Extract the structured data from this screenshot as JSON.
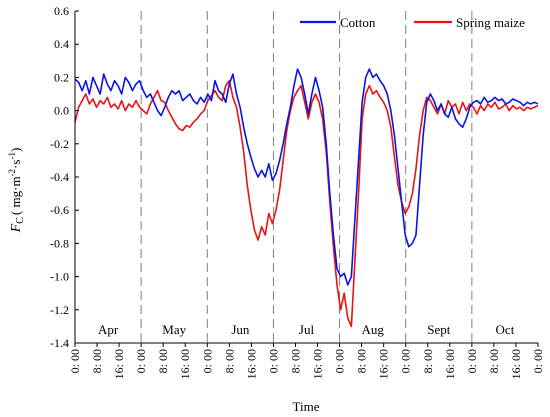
{
  "chart_data": {
    "type": "line",
    "xlabel": "Time",
    "ylabel": {
      "main": "F",
      "sub": "C",
      "unit": "( mg·m",
      "exp1": "-2",
      "mid": "·s",
      "exp2": "-1",
      "close": ")"
    },
    "ylim": [
      -1.4,
      0.6
    ],
    "yticks": [
      "0.6",
      "0.4",
      "0.2",
      "0.0",
      "-0.2",
      "-0.4",
      "-0.6",
      "-0.8",
      "-1.0",
      "-1.2",
      "-1.4"
    ],
    "x_tick_labels": [
      "0: 00",
      "8: 00",
      "16: 00",
      "0: 00",
      "8: 00",
      "16: 00",
      "0: 00",
      "8: 00",
      "16: 00",
      "0: 00",
      "8: 00",
      "16: 00",
      "0: 00",
      "8: 00",
      "16: 00",
      "0: 00",
      "8: 00",
      "16: 00",
      "0: 00",
      "8: 00",
      "16: 00",
      "0: 00"
    ],
    "months": [
      "Apr",
      "May",
      "Jun",
      "Jul",
      "Aug",
      "Sept",
      "Oct"
    ],
    "legend": {
      "placement": "top-right"
    },
    "series": [
      {
        "name": "Cotton",
        "color": "#0a14e6",
        "values": [
          0.19,
          0.17,
          0.12,
          0.18,
          0.1,
          0.2,
          0.15,
          0.1,
          0.22,
          0.16,
          0.12,
          0.18,
          0.15,
          0.1,
          0.2,
          0.17,
          0.12,
          0.16,
          0.18,
          0.12,
          0.08,
          0.1,
          0.05,
          0.0,
          -0.03,
          0.02,
          0.08,
          0.12,
          0.1,
          0.12,
          0.06,
          0.08,
          0.1,
          0.06,
          0.04,
          0.08,
          0.05,
          0.1,
          0.06,
          0.18,
          0.12,
          0.1,
          0.05,
          0.16,
          0.22,
          0.1,
          0.02,
          -0.1,
          -0.2,
          -0.28,
          -0.35,
          -0.4,
          -0.36,
          -0.4,
          -0.32,
          -0.42,
          -0.38,
          -0.3,
          -0.2,
          -0.08,
          0.02,
          0.15,
          0.25,
          0.2,
          0.1,
          -0.02,
          0.1,
          0.2,
          0.12,
          0.02,
          -0.2,
          -0.5,
          -0.75,
          -0.95,
          -1.0,
          -0.98,
          -1.05,
          -1.0,
          -0.65,
          -0.3,
          0.05,
          0.2,
          0.25,
          0.2,
          0.22,
          0.18,
          0.15,
          0.1,
          0.0,
          -0.15,
          -0.35,
          -0.55,
          -0.75,
          -0.82,
          -0.8,
          -0.75,
          -0.45,
          -0.15,
          0.05,
          0.1,
          0.06,
          0.0,
          0.04,
          -0.02,
          -0.04,
          0.02,
          -0.05,
          -0.08,
          -0.1,
          -0.05,
          0.02,
          0.05,
          0.06,
          0.04,
          0.08,
          0.05,
          0.06,
          0.08,
          0.06,
          0.07,
          0.04,
          0.05,
          0.07,
          0.06,
          0.05,
          0.03,
          0.05,
          0.04,
          0.05,
          0.04
        ]
      },
      {
        "name": "Spring maize",
        "color": "#e61414",
        "values": [
          -0.07,
          0.02,
          0.06,
          0.1,
          0.04,
          0.07,
          0.02,
          0.06,
          0.04,
          0.08,
          0.02,
          0.04,
          0.01,
          0.06,
          0.0,
          0.04,
          0.02,
          0.06,
          0.02,
          0.0,
          -0.02,
          0.04,
          0.08,
          0.12,
          0.06,
          0.05,
          0.0,
          -0.04,
          -0.08,
          -0.11,
          -0.12,
          -0.09,
          -0.1,
          -0.07,
          -0.05,
          -0.02,
          0.0,
          0.06,
          0.09,
          0.12,
          0.08,
          0.06,
          0.15,
          0.18,
          0.08,
          0.02,
          -0.1,
          -0.25,
          -0.45,
          -0.6,
          -0.72,
          -0.78,
          -0.7,
          -0.75,
          -0.62,
          -0.68,
          -0.6,
          -0.48,
          -0.3,
          -0.12,
          0.0,
          0.08,
          0.12,
          0.15,
          0.05,
          -0.05,
          0.05,
          0.1,
          0.05,
          -0.05,
          -0.25,
          -0.55,
          -0.82,
          -1.05,
          -1.2,
          -1.1,
          -1.25,
          -1.3,
          -0.9,
          -0.5,
          -0.05,
          0.1,
          0.15,
          0.1,
          0.12,
          0.08,
          0.05,
          0.0,
          -0.1,
          -0.28,
          -0.45,
          -0.55,
          -0.62,
          -0.58,
          -0.5,
          -0.35,
          -0.15,
          0.0,
          0.08,
          0.06,
          0.02,
          -0.02,
          0.04,
          -0.02,
          0.06,
          0.02,
          0.04,
          -0.02,
          0.05,
          0.0,
          0.04,
          0.02,
          -0.02,
          0.03,
          0.0,
          0.04,
          0.02,
          0.05,
          0.01,
          0.02,
          0.04,
          0.0,
          0.03,
          0.01,
          0.02,
          0.0,
          0.02,
          0.01,
          0.02,
          0.03
        ]
      }
    ]
  }
}
